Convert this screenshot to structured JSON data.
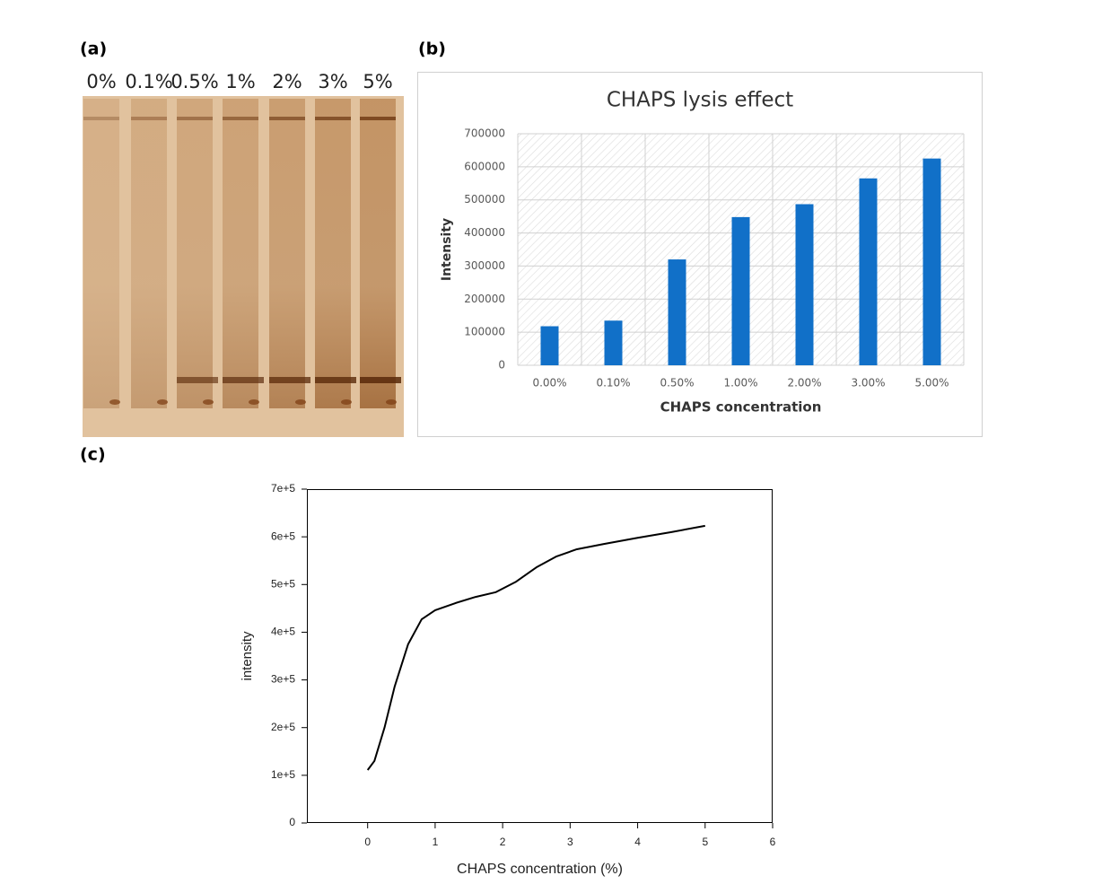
{
  "panels": {
    "a": "(a)",
    "b": "(b)",
    "c": "(c)"
  },
  "gel": {
    "lanes": [
      "0%",
      "0.1%",
      "0.5%",
      "1%",
      "2%",
      "3%",
      "5%"
    ]
  },
  "chart_data": [
    {
      "type": "bar",
      "title": "CHAPS lysis effect",
      "categories": [
        "0.00%",
        "0.10%",
        "0.50%",
        "1.00%",
        "2.00%",
        "3.00%",
        "5.00%"
      ],
      "values": [
        118000,
        135000,
        320000,
        448000,
        487000,
        565000,
        625000
      ],
      "color": "#1170c8",
      "ylim": [
        0,
        700000
      ],
      "yticks": [
        0,
        100000,
        200000,
        300000,
        400000,
        500000,
        600000,
        700000
      ],
      "xlabel": "CHAPS concentration",
      "ylabel": "Intensity",
      "grid": true
    },
    {
      "type": "line",
      "x": [
        0,
        0.1,
        0.25,
        0.4,
        0.6,
        0.8,
        1.0,
        1.3,
        1.6,
        1.9,
        2.2,
        2.5,
        2.8,
        3.1,
        3.5,
        4.0,
        4.5,
        5.0
      ],
      "values": [
        111000,
        130000,
        200000,
        286000,
        375000,
        427000,
        446000,
        461000,
        474000,
        484000,
        506000,
        536000,
        559000,
        574000,
        585000,
        598000,
        610000,
        623000
      ],
      "color": "#000000",
      "xlim": [
        -0.9,
        6
      ],
      "xticks": [
        0,
        1,
        2,
        3,
        4,
        5,
        6
      ],
      "ylim": [
        0,
        700000
      ],
      "yticks": [
        0,
        {
          "value": 100000,
          "label": "1e+5"
        },
        {
          "value": 200000,
          "label": "2e+5"
        },
        {
          "value": 300000,
          "label": "3e+5"
        },
        {
          "value": 400000,
          "label": "4e+5"
        },
        {
          "value": 500000,
          "label": "5e+5"
        },
        {
          "value": 600000,
          "label": "6e+5"
        },
        {
          "value": 700000,
          "label": "7e+5"
        }
      ],
      "xlabel": "CHAPS concentration (%)",
      "ylabel": "intensity",
      "grid": false
    }
  ]
}
